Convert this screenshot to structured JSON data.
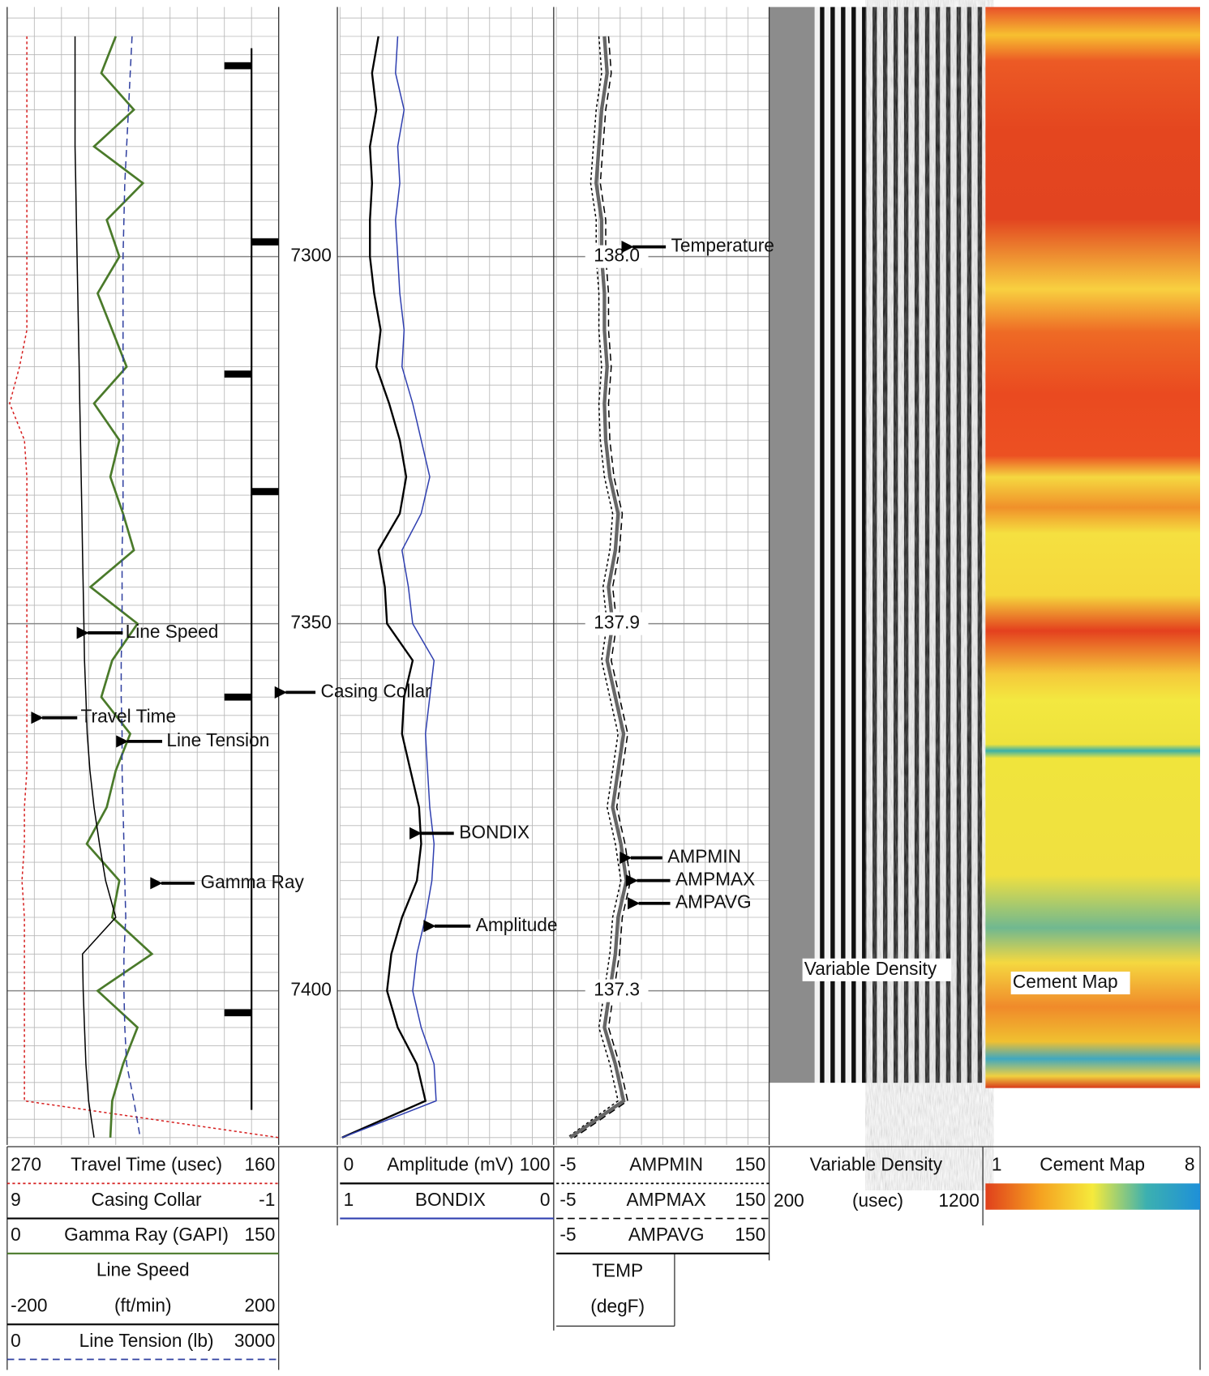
{
  "chart_data": {
    "type": "well-log",
    "ylim": [
      7266,
      7421
    ],
    "yticks": [
      7300,
      7350,
      7400
    ],
    "grid": true,
    "depth": [
      7270,
      7275,
      7280,
      7285,
      7290,
      7295,
      7300,
      7305,
      7310,
      7315,
      7320,
      7325,
      7330,
      7335,
      7340,
      7345,
      7350,
      7355,
      7360,
      7365,
      7370,
      7375,
      7380,
      7385,
      7390,
      7395,
      7400,
      7405,
      7410,
      7415,
      7420
    ],
    "series": [
      {
        "name": "Travel Time (usec)",
        "color": "#d62020",
        "dash": "dotted",
        "track": 1,
        "xlim": [
          270,
          160
        ],
        "values": [
          262,
          262,
          262,
          262,
          262,
          262,
          262,
          262,
          262,
          265,
          269,
          263,
          262,
          262,
          262,
          262,
          262,
          262,
          262,
          262,
          262,
          263,
          263,
          264,
          263,
          263,
          263,
          263,
          263,
          263,
          160
        ]
      },
      {
        "name": "Casing Collar",
        "color": "#000000",
        "dash": "solid",
        "track": 1,
        "xlim": [
          9,
          -1
        ],
        "depth": [
          7274,
          7298,
          7316,
          7332,
          7360,
          7403
        ],
        "values": [
          1,
          -1,
          1,
          -1,
          1,
          1
        ]
      },
      {
        "name": "Gamma Ray (GAPI)",
        "color": "#4a7a2a",
        "dash": "solid",
        "track": 1,
        "xlim": [
          0,
          150
        ],
        "values": [
          60,
          52,
          70,
          48,
          75,
          55,
          62,
          50,
          58,
          66,
          48,
          62,
          57,
          64,
          70,
          46,
          72,
          58,
          52,
          68,
          60,
          55,
          44,
          62,
          58,
          80,
          50,
          72,
          64,
          58,
          57
        ]
      },
      {
        "name": "Line Speed",
        "unit": "(ft/min)",
        "color": "#000000",
        "dash": "solid",
        "track": 1,
        "xlim": [
          -200,
          200
        ],
        "values": [
          -100,
          -100,
          -100,
          -100,
          -99,
          -98,
          -97,
          -96,
          -95,
          -94,
          -93,
          -92,
          -91,
          -90,
          -89,
          -88,
          -87,
          -86,
          -84,
          -82,
          -78,
          -72,
          -64,
          -55,
          -40,
          -89,
          -88,
          -86,
          -84,
          -80,
          -72
        ]
      },
      {
        "name": "Line Tension (lb)",
        "color": "#3040a0",
        "dash": "dashed",
        "track": 1,
        "xlim": [
          0,
          3000
        ],
        "values": [
          1380,
          1360,
          1340,
          1320,
          1300,
          1290,
          1280,
          1280,
          1280,
          1280,
          1280,
          1280,
          1280,
          1280,
          1270,
          1270,
          1270,
          1260,
          1260,
          1270,
          1270,
          1280,
          1290,
          1300,
          1310,
          1290,
          1290,
          1300,
          1320,
          1400,
          1470
        ]
      },
      {
        "name": "Amplitude (mV)",
        "color": "#000000",
        "dash": "solid",
        "track": 2,
        "xlim": [
          0,
          100
        ],
        "values": [
          18,
          15,
          17,
          14,
          15,
          14,
          14,
          16,
          19,
          17,
          23,
          28,
          31,
          28,
          18,
          21,
          22,
          34,
          30,
          29,
          33,
          37,
          38,
          36,
          29,
          24,
          22,
          27,
          36,
          40,
          1
        ]
      },
      {
        "name": "BONDIX",
        "color": "#3040b0",
        "dash": "solid",
        "track": 2,
        "xlim": [
          1,
          0
        ],
        "values": [
          0.73,
          0.74,
          0.7,
          0.73,
          0.72,
          0.74,
          0.73,
          0.72,
          0.7,
          0.71,
          0.66,
          0.62,
          0.58,
          0.62,
          0.71,
          0.68,
          0.66,
          0.56,
          0.58,
          0.6,
          0.59,
          0.58,
          0.56,
          0.57,
          0.6,
          0.64,
          0.66,
          0.62,
          0.56,
          0.55,
          0.99
        ]
      },
      {
        "name": "AMPMIN",
        "color": "#000000",
        "dash": "dotted",
        "track": 3,
        "xlim": [
          -5,
          150
        ],
        "values": [
          26,
          28,
          24,
          22,
          20,
          24,
          24,
          26,
          26,
          28,
          26,
          27,
          30,
          36,
          34,
          29,
          32,
          28,
          34,
          40,
          36,
          32,
          38,
          42,
          36,
          34,
          30,
          26,
          34,
          40,
          3
        ]
      },
      {
        "name": "AMPMAX",
        "color": "#000000",
        "dash": "dashed",
        "track": 3,
        "xlim": [
          -5,
          150
        ],
        "values": [
          33,
          35,
          31,
          29,
          27,
          31,
          31,
          33,
          33,
          35,
          33,
          34,
          37,
          43,
          41,
          36,
          39,
          35,
          41,
          47,
          43,
          39,
          45,
          49,
          43,
          41,
          37,
          33,
          41,
          47,
          8
        ]
      },
      {
        "name": "AMPAVG",
        "color": "#000000",
        "dash": "solid",
        "track": 3,
        "xlim": [
          -5,
          150
        ],
        "values": [
          30,
          32,
          28,
          26,
          24,
          28,
          28,
          30,
          30,
          32,
          30,
          31,
          34,
          40,
          38,
          33,
          36,
          32,
          38,
          44,
          40,
          36,
          42,
          46,
          40,
          38,
          34,
          30,
          38,
          44,
          5
        ]
      }
    ],
    "temperature": {
      "name": "TEMP",
      "unit": "(degF)",
      "depth": [
        7300,
        7350,
        7400
      ],
      "values": [
        138.0,
        137.9,
        137.3
      ],
      "value_labels": [
        "138.0",
        "137.9",
        "137.3"
      ]
    },
    "variable_density": {
      "name": "Variable Density",
      "unit": "(usec)",
      "xlim": [
        200,
        1200
      ]
    },
    "cement_map": {
      "name": "Cement Map",
      "xlim": [
        1,
        8
      ],
      "colors": [
        "#e0401c",
        "#f5a020",
        "#f5ea3c",
        "#3cb0b0",
        "#1e90d8"
      ]
    },
    "annotations": [
      "Line Speed",
      "Travel Time",
      "Line Tension",
      "Gamma Ray",
      "Casing Collar",
      "BONDIX",
      "Amplitude",
      "Temperature",
      "AMPMIN",
      "AMPMAX",
      "AMPAVG",
      "Variable Density",
      "Cement Map"
    ]
  }
}
